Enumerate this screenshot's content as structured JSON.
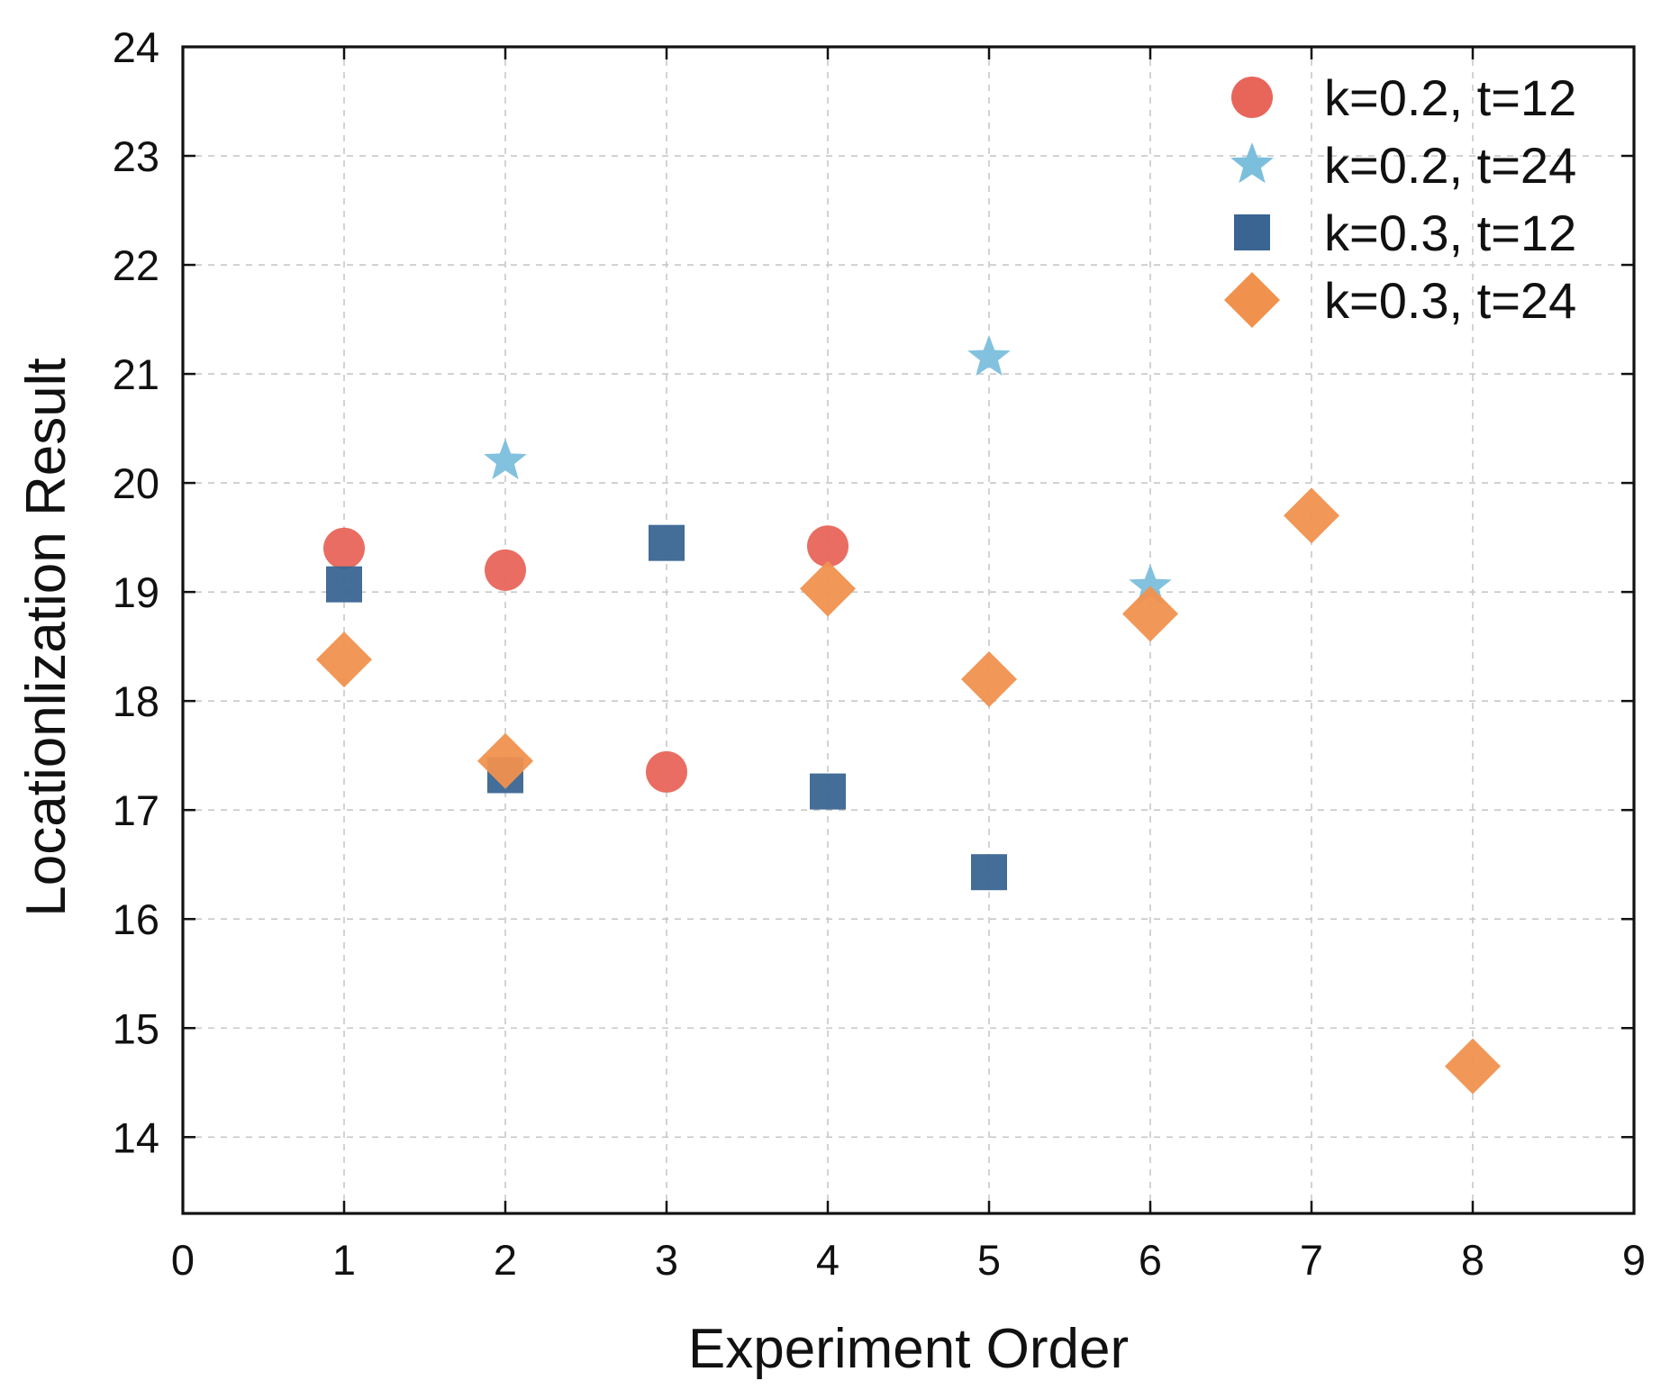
{
  "chart_data": {
    "type": "scatter",
    "title": "",
    "xlabel": "Experiment Order",
    "ylabel": "Locationlization Result",
    "xlim": [
      0,
      9
    ],
    "ylim": [
      13.3,
      24
    ],
    "xticks": [
      0,
      1,
      2,
      3,
      4,
      5,
      6,
      7,
      8,
      9
    ],
    "yticks": [
      14,
      15,
      16,
      17,
      18,
      19,
      20,
      21,
      22,
      23,
      24
    ],
    "grid": true,
    "legend_position": "top-right",
    "series": [
      {
        "name": "k=0.2, t=12",
        "marker": "circle",
        "color": "#e8655a",
        "points": [
          [
            1,
            19.4
          ],
          [
            2,
            19.2
          ],
          [
            3,
            17.35
          ],
          [
            4,
            19.42
          ]
        ]
      },
      {
        "name": "k=0.2, t=24",
        "marker": "star",
        "color": "#7bbfdc",
        "points": [
          [
            2,
            20.2
          ],
          [
            5,
            21.15
          ],
          [
            6,
            19.05
          ]
        ]
      },
      {
        "name": "k=0.3, t=12",
        "marker": "square",
        "color": "#3a6592",
        "points": [
          [
            1,
            19.07
          ],
          [
            2,
            17.32
          ],
          [
            3,
            19.45
          ],
          [
            4,
            17.17
          ],
          [
            5,
            16.43
          ]
        ]
      },
      {
        "name": "k=0.3, t=24",
        "marker": "diamond",
        "color": "#f0914e",
        "points": [
          [
            1,
            18.38
          ],
          [
            2,
            17.45
          ],
          [
            4,
            19.03
          ],
          [
            5,
            18.2
          ],
          [
            6,
            18.8
          ],
          [
            7,
            19.7
          ],
          [
            8,
            14.65
          ]
        ]
      }
    ]
  }
}
